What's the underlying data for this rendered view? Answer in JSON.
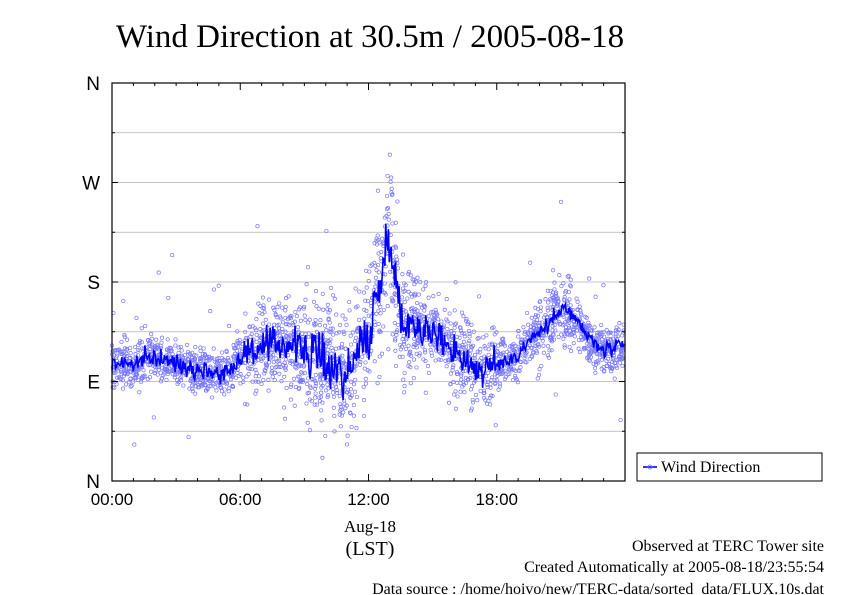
{
  "chart_data": {
    "type": "line",
    "title": "Wind Direction at 30.5m / 2005-08-18",
    "xlabel": "Aug-18",
    "xlabel_unit": "(LST)",
    "x_ticks": [
      "00:00",
      "06:00",
      "12:00",
      "18:00"
    ],
    "y_ticks": [
      "N",
      "W",
      "S",
      "E",
      "N"
    ],
    "legend": {
      "position": "right",
      "label": "Wind Direction"
    },
    "grid": true,
    "series": [
      {
        "name": "Wind Direction",
        "style": "line+scatter",
        "color": "#0000ff",
        "scatter_color": "#7777ff",
        "x_hours": [
          0,
          0.5,
          1,
          1.5,
          2,
          2.5,
          3,
          3.5,
          4,
          4.5,
          5,
          5.5,
          6,
          6.5,
          7,
          7.5,
          8,
          8.5,
          9,
          9.5,
          10,
          10.5,
          11,
          11.5,
          12,
          12.25,
          12.5,
          12.75,
          13,
          13.25,
          13.5,
          14,
          14.5,
          15,
          15.5,
          16,
          16.5,
          17,
          17.5,
          18,
          18.5,
          19,
          19.5,
          20,
          20.5,
          21,
          21.5,
          22,
          22.5,
          23,
          23.5
        ],
        "direction_deg": [
          105,
          108,
          105,
          110,
          112,
          109,
          106,
          104,
          101,
          100,
          97,
          100,
          112,
          120,
          118,
          122,
          125,
          123,
          118,
          113,
          108,
          102,
          95,
          118,
          130,
          155,
          175,
          200,
          235,
          180,
          150,
          143,
          140,
          133,
          127,
          120,
          110,
          102,
          100,
          105,
          110,
          113,
          128,
          135,
          142,
          160,
          150,
          138,
          125,
          118,
          120
        ]
      }
    ]
  },
  "footer": {
    "line1": "Observed at TERC Tower site",
    "line2": "Created Automatically at 2005-08-18/23:55:54",
    "line3": "Data source : /home/hoivo/new/TERC-data/sorted  data/FLUX.10s.dat"
  }
}
